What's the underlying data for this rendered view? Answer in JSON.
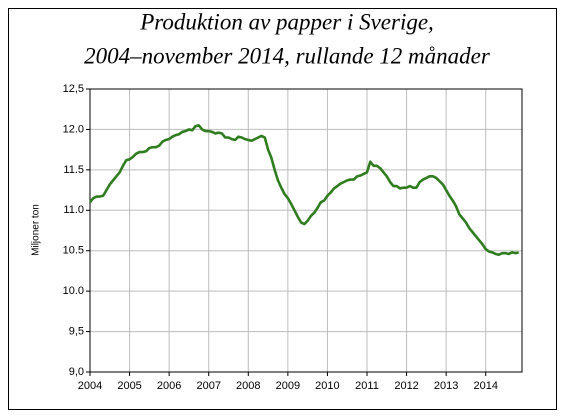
{
  "chart_data": {
    "type": "line",
    "title": "Produktion av papper i Sverige,",
    "subtitle": "2004–november 2014, rullande 12 månader",
    "y_label": "Miljoner ton",
    "x": [
      2004,
      2004.083,
      2004.167,
      2004.25,
      2004.333,
      2004.417,
      2004.5,
      2004.583,
      2004.667,
      2004.75,
      2004.833,
      2004.917,
      2005,
      2005.083,
      2005.167,
      2005.25,
      2005.333,
      2005.417,
      2005.5,
      2005.583,
      2005.667,
      2005.75,
      2005.833,
      2005.917,
      2006,
      2006.083,
      2006.167,
      2006.25,
      2006.333,
      2006.417,
      2006.5,
      2006.583,
      2006.667,
      2006.75,
      2006.833,
      2006.917,
      2007,
      2007.083,
      2007.167,
      2007.25,
      2007.333,
      2007.417,
      2007.5,
      2007.583,
      2007.667,
      2007.75,
      2007.833,
      2007.917,
      2008,
      2008.083,
      2008.167,
      2008.25,
      2008.333,
      2008.417,
      2008.5,
      2008.583,
      2008.667,
      2008.75,
      2008.833,
      2008.917,
      2009,
      2009.083,
      2009.167,
      2009.25,
      2009.333,
      2009.417,
      2009.5,
      2009.583,
      2009.667,
      2009.75,
      2009.833,
      2009.917,
      2010,
      2010.083,
      2010.167,
      2010.25,
      2010.333,
      2010.417,
      2010.5,
      2010.583,
      2010.667,
      2010.75,
      2010.833,
      2010.917,
      2011,
      2011.083,
      2011.167,
      2011.25,
      2011.333,
      2011.417,
      2011.5,
      2011.583,
      2011.667,
      2011.75,
      2011.833,
      2011.917,
      2012,
      2012.083,
      2012.167,
      2012.25,
      2012.333,
      2012.417,
      2012.5,
      2012.583,
      2012.667,
      2012.75,
      2012.833,
      2012.917,
      2013,
      2013.083,
      2013.167,
      2013.25,
      2013.333,
      2013.417,
      2013.5,
      2013.583,
      2013.667,
      2013.75,
      2013.833,
      2013.917,
      2014,
      2014.083,
      2014.167,
      2014.25,
      2014.333,
      2014.417,
      2014.5,
      2014.583,
      2014.667,
      2014.75,
      2014.833
    ],
    "series": [
      {
        "color": "#2f7d1f",
        "values": [
          11.1,
          11.15,
          11.17,
          11.17,
          11.18,
          11.25,
          11.32,
          11.37,
          11.42,
          11.47,
          11.55,
          11.62,
          11.63,
          11.66,
          11.7,
          11.72,
          11.72,
          11.73,
          11.77,
          11.78,
          11.78,
          11.8,
          11.85,
          11.87,
          11.88,
          11.91,
          11.93,
          11.94,
          11.97,
          11.98,
          12.0,
          11.99,
          12.04,
          12.05,
          12.0,
          11.98,
          11.98,
          11.97,
          11.95,
          11.96,
          11.95,
          11.9,
          11.9,
          11.88,
          11.87,
          11.91,
          11.9,
          11.88,
          11.87,
          11.86,
          11.88,
          11.9,
          11.92,
          11.9,
          11.75,
          11.65,
          11.5,
          11.37,
          11.28,
          11.2,
          11.15,
          11.08,
          11.0,
          10.92,
          10.85,
          10.83,
          10.87,
          10.93,
          10.97,
          11.03,
          11.1,
          11.12,
          11.18,
          11.22,
          11.27,
          11.3,
          11.33,
          11.35,
          11.37,
          11.38,
          11.38,
          11.42,
          11.43,
          11.45,
          11.47,
          11.6,
          11.55,
          11.55,
          11.52,
          11.47,
          11.42,
          11.35,
          11.3,
          11.3,
          11.27,
          11.28,
          11.28,
          11.3,
          11.28,
          11.28,
          11.35,
          11.38,
          11.4,
          11.42,
          11.42,
          11.4,
          11.36,
          11.32,
          11.25,
          11.18,
          11.12,
          11.05,
          10.95,
          10.9,
          10.85,
          10.78,
          10.73,
          10.68,
          10.63,
          10.58,
          10.52,
          10.49,
          10.48,
          10.46,
          10.45,
          10.47,
          10.47,
          10.46,
          10.48,
          10.47,
          10.48
        ]
      }
    ],
    "xlim": [
      2004,
      2014.917
    ],
    "xticks": [
      2004,
      2005,
      2006,
      2007,
      2008,
      2009,
      2010,
      2011,
      2012,
      2013,
      2014
    ],
    "ylim": [
      9,
      12.5
    ],
    "yticks": [
      {
        "value": 9,
        "label": "9,0"
      },
      {
        "value": 9.5,
        "label": "9,5"
      },
      {
        "value": 10,
        "label": "10.0"
      },
      {
        "value": 10.5,
        "label": "10.5"
      },
      {
        "value": 11,
        "label": "11.0"
      },
      {
        "value": 11.5,
        "label": "11.5"
      },
      {
        "value": 12,
        "label": "12.0"
      },
      {
        "value": 12.5,
        "label": "12,5"
      }
    ],
    "grid": true
  }
}
